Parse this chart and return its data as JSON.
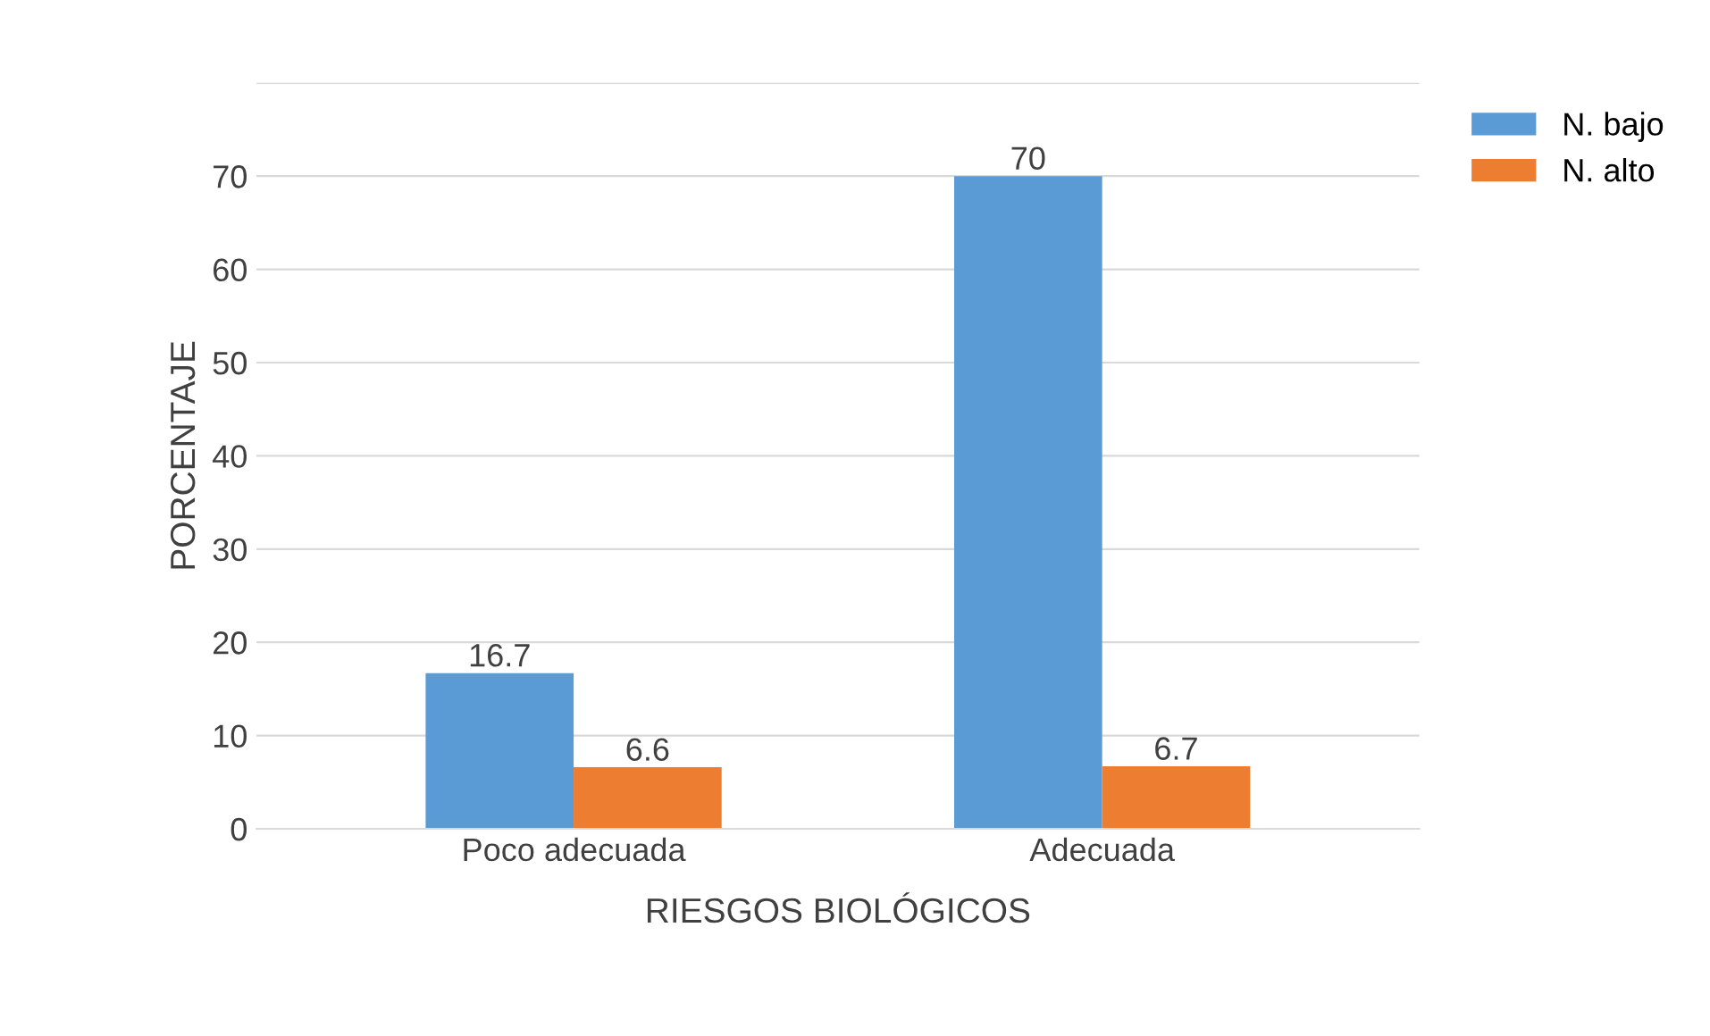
{
  "chart_data": {
    "type": "bar",
    "xlabel": "RIESGOS BIOLÓGICOS",
    "ylabel": "PORCENTAJE",
    "categories": [
      "Poco adecuada",
      "Adecuada"
    ],
    "series": [
      {
        "name": "N. bajo",
        "color": "#5b9bd5",
        "values": [
          16.7,
          70
        ]
      },
      {
        "name": "N. alto",
        "color": "#ed7d31",
        "values": [
          6.6,
          6.7
        ]
      }
    ],
    "ylim": [
      0,
      80
    ],
    "yticks": [
      0,
      10,
      20,
      30,
      40,
      50,
      60,
      70,
      {
        "value": 80,
        "label": null
      }
    ],
    "grid": "y",
    "legend": "top right",
    "data_labels": true
  }
}
